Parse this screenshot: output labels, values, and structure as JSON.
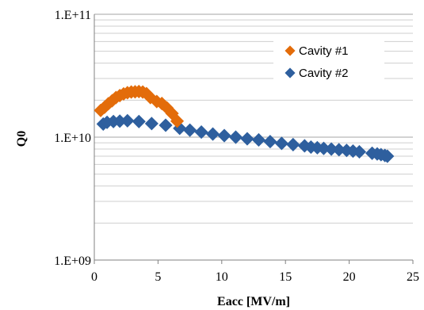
{
  "chart_data": {
    "type": "scatter",
    "xlabel": "Eacc [MV/m]",
    "ylabel": "Q0",
    "xlim": [
      0,
      25
    ],
    "ylim": [
      1000000000,
      100000000000
    ],
    "y_scale": "log",
    "grid": "horizontal, major and minor",
    "legend_position": "top-right",
    "x_ticks": [
      "0",
      "5",
      "10",
      "15",
      "20",
      "25"
    ],
    "y_ticks": [
      "1.E+09",
      "1.E+10",
      "1.E+11"
    ],
    "series": [
      {
        "name": "Cavity #1",
        "marker": "diamond",
        "color": "#E36C0A",
        "points": [
          [
            0.5,
            16500000000
          ],
          [
            0.8,
            17500000000
          ],
          [
            1.1,
            18700000000
          ],
          [
            1.4,
            19800000000
          ],
          [
            1.7,
            21000000000
          ],
          [
            2.0,
            21800000000
          ],
          [
            2.3,
            22500000000
          ],
          [
            2.6,
            23000000000
          ],
          [
            2.9,
            23300000000
          ],
          [
            3.2,
            23400000000
          ],
          [
            3.5,
            23500000000
          ],
          [
            3.8,
            23300000000
          ],
          [
            4.1,
            22600000000
          ],
          [
            4.4,
            21000000000
          ],
          [
            4.9,
            19500000000
          ],
          [
            5.3,
            18800000000
          ],
          [
            5.7,
            17300000000
          ],
          [
            6.1,
            15600000000
          ],
          [
            6.5,
            13500000000
          ]
        ]
      },
      {
        "name": "Cavity #2",
        "marker": "diamond",
        "color": "#2E5F9E",
        "points": [
          [
            0.7,
            12800000000
          ],
          [
            1.0,
            13200000000
          ],
          [
            1.5,
            13400000000
          ],
          [
            2.0,
            13500000000
          ],
          [
            2.6,
            13600000000
          ],
          [
            3.5,
            13400000000
          ],
          [
            4.5,
            12900000000
          ],
          [
            5.6,
            12500000000
          ],
          [
            6.7,
            11800000000
          ],
          [
            7.5,
            11400000000
          ],
          [
            8.4,
            11000000000
          ],
          [
            9.3,
            10600000000
          ],
          [
            10.2,
            10300000000
          ],
          [
            11.1,
            10000000000
          ],
          [
            12.0,
            9700000000
          ],
          [
            12.9,
            9500000000
          ],
          [
            13.8,
            9200000000
          ],
          [
            14.7,
            8900000000
          ],
          [
            15.6,
            8700000000
          ],
          [
            16.5,
            8500000000
          ],
          [
            17.0,
            8300000000
          ],
          [
            17.5,
            8200000000
          ],
          [
            18.0,
            8100000000
          ],
          [
            18.6,
            8000000000
          ],
          [
            19.2,
            7900000000
          ],
          [
            19.8,
            7800000000
          ],
          [
            20.3,
            7700000000
          ],
          [
            20.8,
            7600000000
          ],
          [
            21.8,
            7400000000
          ],
          [
            22.2,
            7300000000
          ],
          [
            22.5,
            7200000000
          ],
          [
            22.8,
            7100000000
          ],
          [
            23.0,
            7000000000
          ]
        ]
      }
    ]
  }
}
